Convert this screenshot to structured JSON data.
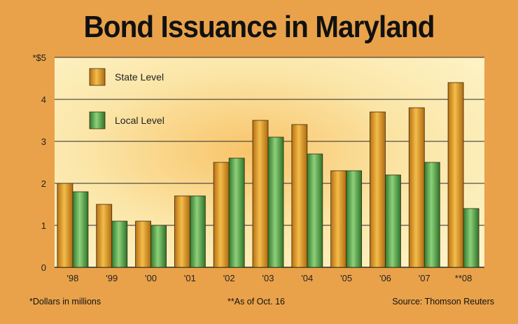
{
  "chart_data": {
    "type": "bar",
    "title": "Bond Issuance in Maryland",
    "categories": [
      "'98",
      "'99",
      "'00",
      "'01",
      "'02",
      "'03",
      "'04",
      "'05",
      "'06",
      "'07",
      "**08"
    ],
    "series": [
      {
        "name": "State Level",
        "color": "#e3a02c",
        "values": [
          2.0,
          1.5,
          1.1,
          1.7,
          2.5,
          3.5,
          3.4,
          2.3,
          3.7,
          3.8,
          4.4
        ]
      },
      {
        "name": "Local Level",
        "color": "#56a84e",
        "values": [
          1.8,
          1.1,
          1.0,
          1.7,
          2.6,
          3.1,
          2.7,
          2.3,
          2.2,
          2.5,
          1.4
        ]
      }
    ],
    "ylim": [
      0,
      5
    ],
    "yticks": [
      {
        "value": 0,
        "label": "0"
      },
      {
        "value": 1,
        "label": "1"
      },
      {
        "value": 2,
        "label": "2"
      },
      {
        "value": 3,
        "label": "3"
      },
      {
        "value": 4,
        "label": "4"
      },
      {
        "value": 5,
        "label": "*$5"
      }
    ],
    "grid": true,
    "legend_position": "top-left"
  },
  "footnotes": {
    "units": "*Dollars in millions",
    "as_of": "**As of Oct. 16",
    "source": "Source: Thomson Reuters"
  }
}
